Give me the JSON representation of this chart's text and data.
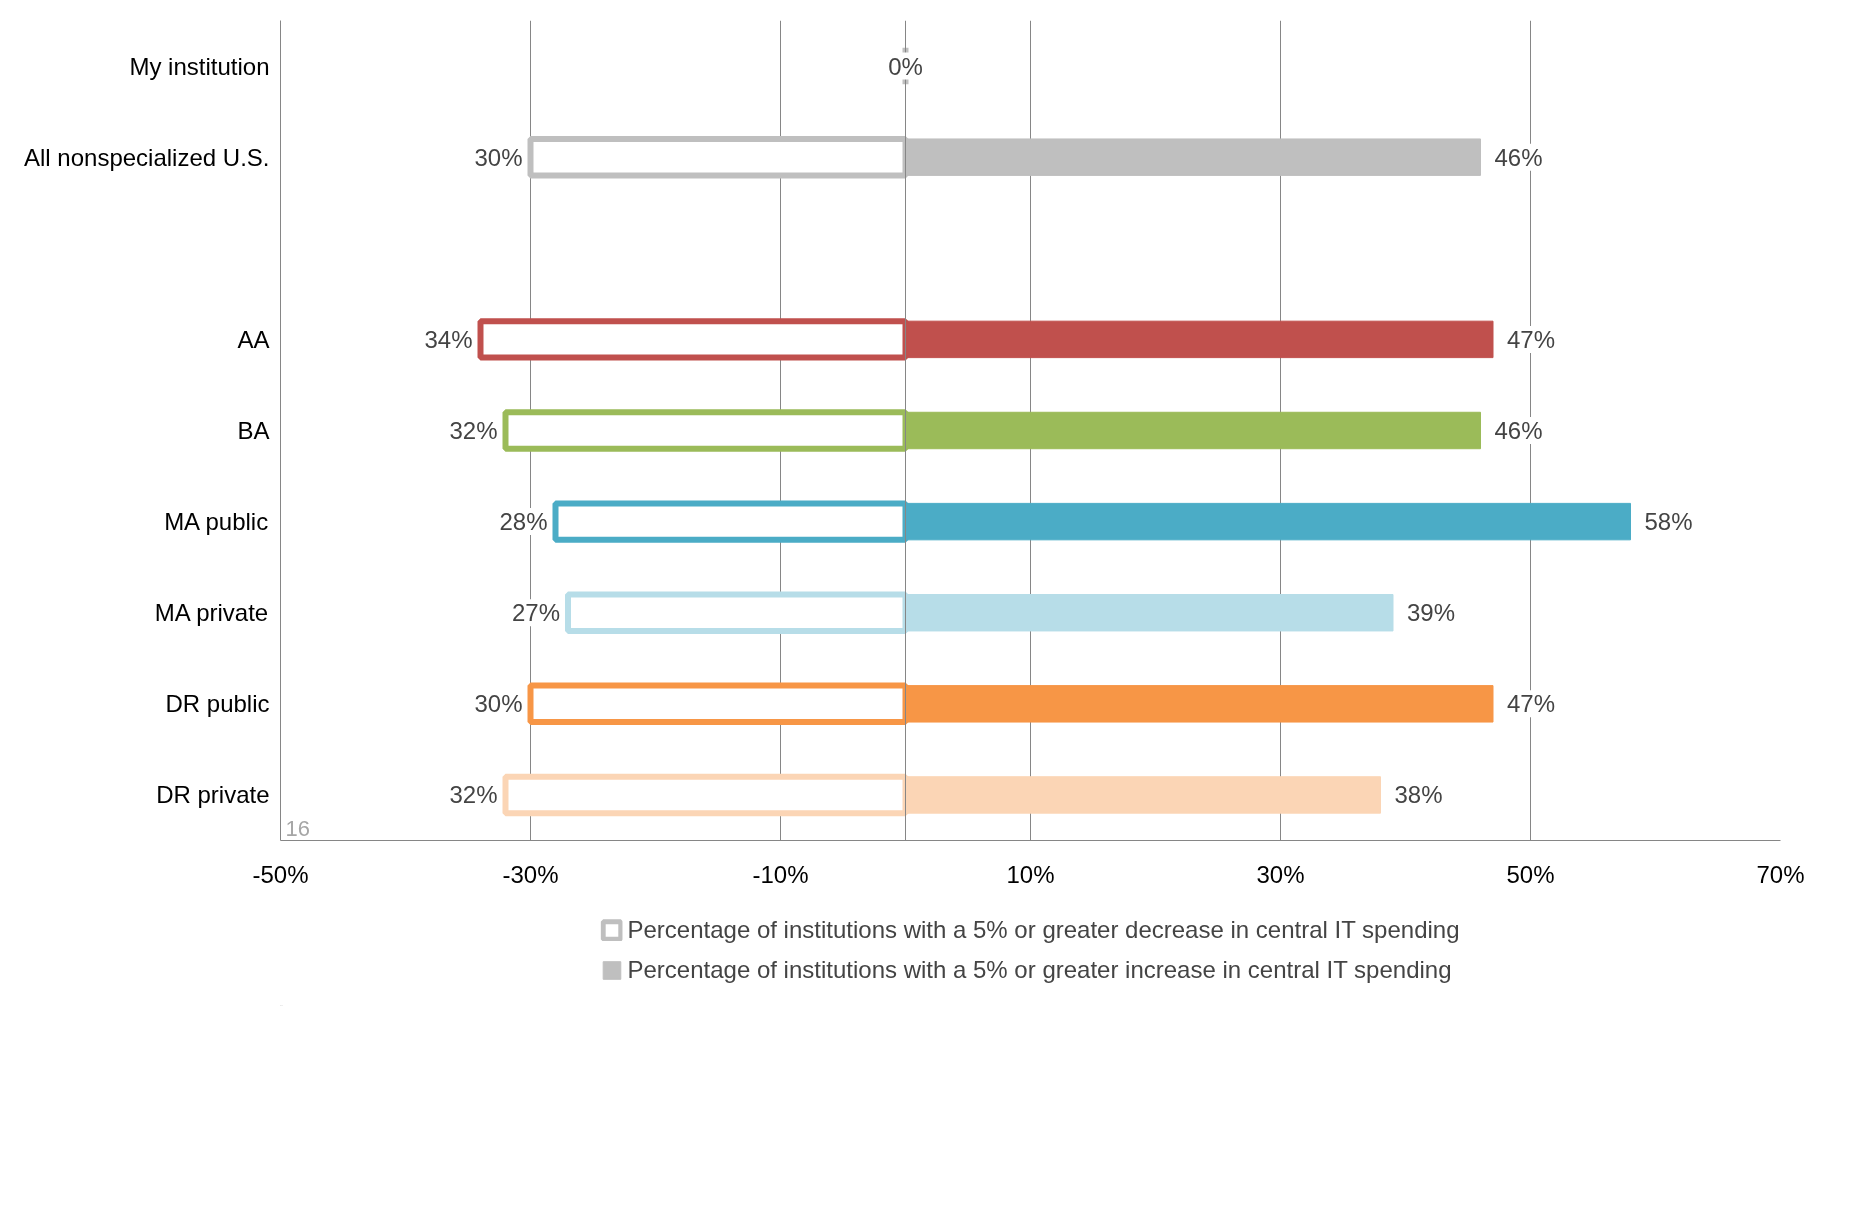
{
  "chart_data": {
    "type": "bar",
    "orientation": "horizontal",
    "categories": [
      "My institution",
      "All nonspecialized U.S.",
      null,
      "AA",
      "BA",
      "MA public",
      "MA private",
      "DR public",
      "DR private"
    ],
    "series": [
      {
        "name": "Percentage of institutions with a 5% or greater decrease in central IT spending",
        "color": "#bfbfbf",
        "colors": [
          "#bfbfbf",
          "#bfbfbf",
          "#bfbfbf",
          "#c0504d",
          "#9bbb59",
          "#4bacc6",
          "#b7dde8",
          "#f79646",
          "#fbd5b5"
        ],
        "values": [
          0,
          30,
          null,
          34,
          32,
          28,
          27,
          30,
          32
        ],
        "base": [
          0,
          -30,
          null,
          -34,
          -32,
          -28,
          -27,
          -30,
          -32
        ],
        "value_labels": [
          null,
          "30%",
          null,
          "34%",
          "32%",
          "28%",
          "27%",
          "30%",
          "32%"
        ]
      },
      {
        "name": "Percentage of institutions with a 5% or greater increase in central IT spending",
        "color": "#bfbfbf",
        "colors": [
          "#bfbfbf",
          "#bfbfbf",
          "#bfbfbf",
          "#c0504d",
          "#9bbb59",
          "#4bacc6",
          "#b7dde8",
          "#f79646",
          "#fbd5b5"
        ],
        "values": [
          0,
          46,
          null,
          47,
          46,
          58,
          39,
          47,
          38
        ],
        "value_labels": [
          "0%",
          "46%",
          null,
          "47%",
          "46%",
          "58%",
          "39%",
          "47%",
          "38%"
        ]
      }
    ],
    "xlim": [
      -50,
      70
    ],
    "xticks": [
      {
        "value": -50,
        "label": "-50%"
      },
      {
        "value": -30,
        "label": "-30%"
      },
      {
        "value": -10,
        "label": "-10%"
      },
      {
        "value": 10,
        "label": "10%"
      },
      {
        "value": 30,
        "label": "30%"
      },
      {
        "value": 50,
        "label": "50%"
      },
      {
        "value": 70,
        "label": "70%"
      }
    ],
    "grid": "x",
    "legend": "bottom",
    "annotations": [
      "16"
    ]
  }
}
